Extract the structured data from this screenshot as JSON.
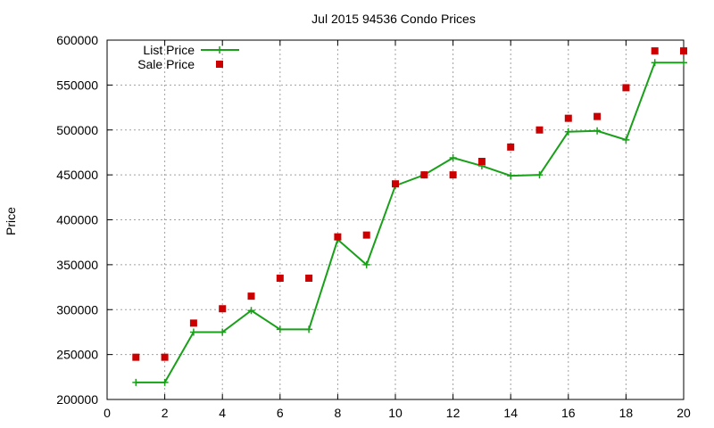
{
  "chart_data": {
    "type": "line",
    "title": "Jul 2015 94536 Condo Prices",
    "xlabel": "",
    "ylabel": "Price",
    "xlim": [
      0,
      20
    ],
    "ylim": [
      200000,
      600000
    ],
    "x_ticks": [
      0,
      2,
      4,
      6,
      8,
      10,
      12,
      14,
      16,
      18,
      20
    ],
    "y_ticks": [
      200000,
      250000,
      300000,
      350000,
      400000,
      450000,
      500000,
      550000,
      600000
    ],
    "grid": true,
    "legend_position": "top-left",
    "series": [
      {
        "name": "List Price",
        "style": "line-points",
        "color": "#19a019",
        "x": [
          1,
          2,
          3,
          4,
          5,
          6,
          7,
          8,
          9,
          10,
          11,
          12,
          13,
          14,
          15,
          16,
          17,
          18,
          19,
          20
        ],
        "values": [
          219000,
          219000,
          275000,
          275000,
          299000,
          278000,
          278000,
          378000,
          350000,
          438000,
          450000,
          469000,
          460000,
          449000,
          450000,
          498000,
          499000,
          489000,
          575000,
          575000
        ]
      },
      {
        "name": "Sale Price",
        "style": "points",
        "color": "#cc0000",
        "x": [
          1,
          2,
          3,
          4,
          5,
          6,
          7,
          8,
          9,
          10,
          11,
          12,
          13,
          14,
          15,
          16,
          17,
          18,
          19,
          20
        ],
        "values": [
          247000,
          247000,
          285000,
          301000,
          315000,
          335000,
          335000,
          381000,
          383000,
          440000,
          450000,
          450000,
          465000,
          481000,
          500000,
          513000,
          515000,
          547000,
          588000,
          588000
        ]
      }
    ]
  }
}
